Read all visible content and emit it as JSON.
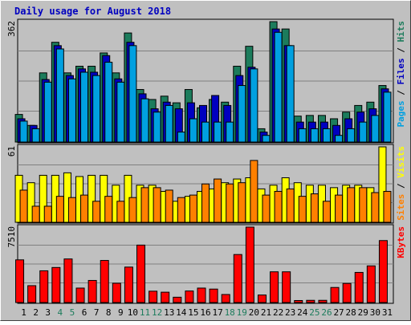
{
  "chart_data": {
    "type": "bar",
    "title": "Daily usage for August 2018",
    "categories": [
      "1",
      "2",
      "3",
      "4",
      "5",
      "6",
      "7",
      "8",
      "9",
      "10",
      "11",
      "12",
      "13",
      "14",
      "15",
      "16",
      "17",
      "18",
      "19",
      "20",
      "21",
      "22",
      "23",
      "24",
      "25",
      "26",
      "27",
      "28",
      "29",
      "30",
      "31"
    ],
    "weekend_days": [
      "4",
      "5",
      "11",
      "12",
      "18",
      "19",
      "25",
      "26"
    ],
    "panels": [
      {
        "id": "top",
        "max_label": "362",
        "ylim": [
          0,
          362
        ],
        "right_labels": [
          {
            "text": "Pages",
            "color": "#00a0e0"
          },
          {
            "text": " / ",
            "color": "#000000"
          },
          {
            "text": "Files",
            "color": "#0000c0"
          },
          {
            "text": " / ",
            "color": "#000000"
          },
          {
            "text": "Hits",
            "color": "#1c7c5c"
          }
        ],
        "series": [
          {
            "name": "Hits",
            "color": "#1c7c5c",
            "values": [
              83,
              50,
              208,
              300,
              208,
              228,
              228,
              268,
              208,
              328,
              158,
              128,
              138,
              118,
              158,
              103,
              128,
              120,
              228,
              288,
              40,
              362,
              340,
              78,
              80,
              80,
              70,
              90,
              110,
              120,
              170
            ]
          },
          {
            "name": "Files",
            "color": "#0000c0",
            "values": [
              70,
              50,
              188,
              290,
              200,
              220,
              210,
              260,
              190,
              300,
              145,
              100,
              120,
              100,
              118,
              110,
              140,
              110,
              200,
              225,
              30,
              340,
              290,
              60,
              60,
              60,
              50,
              70,
              90,
              100,
              160
            ]
          },
          {
            "name": "Pages",
            "color": "#00a0e0",
            "values": [
              63,
              40,
              180,
              280,
              190,
              210,
              200,
              240,
              180,
              290,
              130,
              90,
              110,
              30,
              70,
              60,
              60,
              60,
              170,
              220,
              20,
              330,
              290,
              40,
              40,
              40,
              20,
              40,
              60,
              80,
              150
            ]
          }
        ]
      },
      {
        "id": "middle",
        "max_label": "61",
        "ylim": [
          0,
          61
        ],
        "right_labels": [
          {
            "text": "Sites",
            "color": "#ff8000"
          },
          {
            "text": " / ",
            "color": "#000000"
          },
          {
            "text": "Visits",
            "color": "#ffff00"
          }
        ],
        "series": [
          {
            "name": "Visits",
            "color": "#ffff00",
            "values": [
              38,
              32,
              38,
              38,
              40,
              37,
              38,
              38,
              30,
              38,
              30,
              30,
              25,
              17,
              21,
              25,
              27,
              32,
              35,
              36,
              27,
              30,
              36,
              32,
              30,
              30,
              28,
              30,
              30,
              28,
              61
            ]
          },
          {
            "name": "Sites",
            "color": "#ff8000",
            "values": [
              26,
              13,
              13,
              21,
              20,
              22,
              17,
              21,
              17,
              20,
              28,
              28,
              26,
              20,
              22,
              31,
              35,
              31,
              32,
              50,
              22,
              25,
              27,
              21,
              23,
              17,
              22,
              28,
              28,
              24,
              25
            ]
          }
        ]
      },
      {
        "id": "bottom",
        "max_label": "7510",
        "ylim": [
          0,
          7510
        ],
        "right_labels": [
          {
            "text": "KBytes",
            "color": "#ff0000"
          }
        ],
        "series": [
          {
            "name": "KBytes",
            "color": "#ff0000",
            "values": [
              4250,
              1680,
              3160,
              3490,
              4340,
              1440,
              2200,
              4190,
              1920,
              3530,
              5720,
              1130,
              1030,
              530,
              1150,
              1440,
              1340,
              800,
              4780,
              7510,
              750,
              3060,
              3060,
              200,
              220,
              220,
              1500,
              1900,
              3000,
              3650,
              6170
            ]
          }
        ]
      }
    ]
  }
}
